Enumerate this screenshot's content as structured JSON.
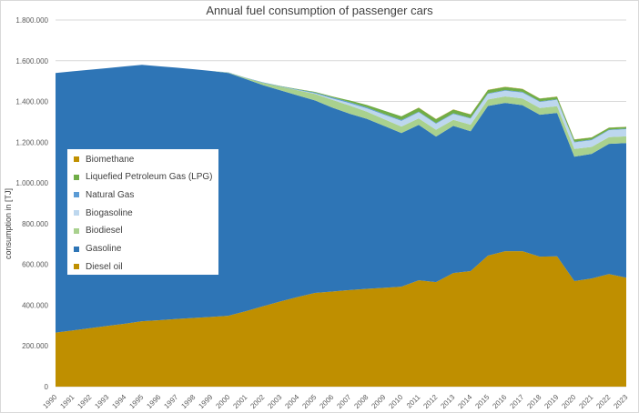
{
  "chart_data": {
    "type": "area",
    "stacked": true,
    "title": "Annual fuel consumption of passenger cars",
    "xlabel": "",
    "ylabel": "consumption in [TJ]",
    "ylim": [
      0,
      1800000
    ],
    "yticks": [
      0,
      200000,
      400000,
      600000,
      800000,
      1000000,
      1200000,
      1400000,
      1600000,
      1800000
    ],
    "ytick_labels": [
      "0",
      "200.000",
      "400.000",
      "600.000",
      "800.000",
      "1.000.000",
      "1.200.000",
      "1.400.000",
      "1.600.000",
      "1.800.000"
    ],
    "grid": true,
    "legend_position": "left-middle",
    "x": [
      1990,
      1991,
      1992,
      1993,
      1994,
      1995,
      1996,
      1997,
      1998,
      1999,
      2000,
      2001,
      2002,
      2003,
      2004,
      2005,
      2006,
      2007,
      2008,
      2009,
      2010,
      2011,
      2012,
      2013,
      2014,
      2015,
      2016,
      2017,
      2018,
      2019,
      2020,
      2021,
      2022,
      2023
    ],
    "series": [
      {
        "name": "Diesel oil",
        "color": "#BF8F00",
        "values": [
          265000,
          276000,
          287000,
          298000,
          309000,
          321000,
          326000,
          332000,
          337000,
          342000,
          348000,
          370000,
          395000,
          418000,
          440000,
          460000,
          467000,
          474000,
          480000,
          485000,
          491000,
          522000,
          513000,
          558000,
          567000,
          643000,
          665000,
          665000,
          638000,
          640000,
          518000,
          531000,
          553000,
          535000
        ]
      },
      {
        "name": "Gasoline",
        "color": "#2E75B6",
        "values": [
          1275000,
          1272000,
          1269000,
          1266000,
          1263000,
          1259000,
          1247000,
          1234000,
          1221000,
          1208000,
          1192000,
          1140000,
          1085000,
          1037000,
          990000,
          945000,
          903000,
          866000,
          835000,
          795000,
          754000,
          763000,
          715000,
          722000,
          687000,
          735000,
          728000,
          717000,
          697000,
          704000,
          611000,
          612000,
          639000,
          661000
        ]
      },
      {
        "name": "Biodiesel",
        "color": "#A9D18E",
        "values": [
          0,
          0,
          0,
          0,
          0,
          0,
          0,
          0,
          0,
          0,
          2000,
          6000,
          12000,
          18000,
          25000,
          32000,
          38000,
          40000,
          35000,
          33000,
          32000,
          32000,
          33000,
          30000,
          32000,
          32000,
          32000,
          33000,
          33000,
          33000,
          38000,
          34000,
          33000,
          33000
        ]
      },
      {
        "name": "Biogasoline",
        "color": "#BDD7EE",
        "values": [
          0,
          0,
          0,
          0,
          0,
          0,
          0,
          0,
          0,
          0,
          0,
          0,
          0,
          0,
          1000,
          3000,
          7000,
          12000,
          16000,
          22000,
          28000,
          30000,
          30000,
          29000,
          30000,
          27000,
          28000,
          29000,
          30000,
          31000,
          32000,
          33000,
          34000,
          35000
        ]
      },
      {
        "name": "Natural Gas",
        "color": "#5B9BD5",
        "values": [
          0,
          0,
          0,
          0,
          0,
          0,
          0,
          0,
          0,
          0,
          1000,
          1000,
          2000,
          2000,
          3000,
          4000,
          5000,
          5000,
          5000,
          4000,
          4000,
          3000,
          3000,
          3000,
          3000,
          3000,
          3000,
          3000,
          3000,
          3000,
          3000,
          3000,
          3000,
          3000
        ]
      },
      {
        "name": "Liquefied Petroleum Gas (LPG)",
        "color": "#70AD47",
        "values": [
          0,
          0,
          0,
          0,
          0,
          0,
          0,
          0,
          0,
          0,
          0,
          0,
          0,
          1000,
          2000,
          3000,
          5000,
          8000,
          12000,
          16000,
          18000,
          19000,
          19000,
          18000,
          17000,
          16000,
          15000,
          14000,
          13000,
          12000,
          11000,
          10000,
          9000,
          8000
        ]
      },
      {
        "name": "Biomethane",
        "color": "#C09000",
        "values": [
          0,
          0,
          0,
          0,
          0,
          0,
          0,
          0,
          0,
          0,
          0,
          0,
          0,
          0,
          0,
          0,
          0,
          0,
          0,
          0,
          0,
          1000,
          1000,
          1000,
          1000,
          1000,
          1000,
          1000,
          1000,
          1000,
          1000,
          1000,
          1000,
          1000
        ]
      }
    ],
    "legend_order": [
      "Biomethane",
      "Liquefied Petroleum Gas (LPG)",
      "Natural Gas",
      "Biogasoline",
      "Biodiesel",
      "Gasoline",
      "Diesel oil"
    ]
  }
}
